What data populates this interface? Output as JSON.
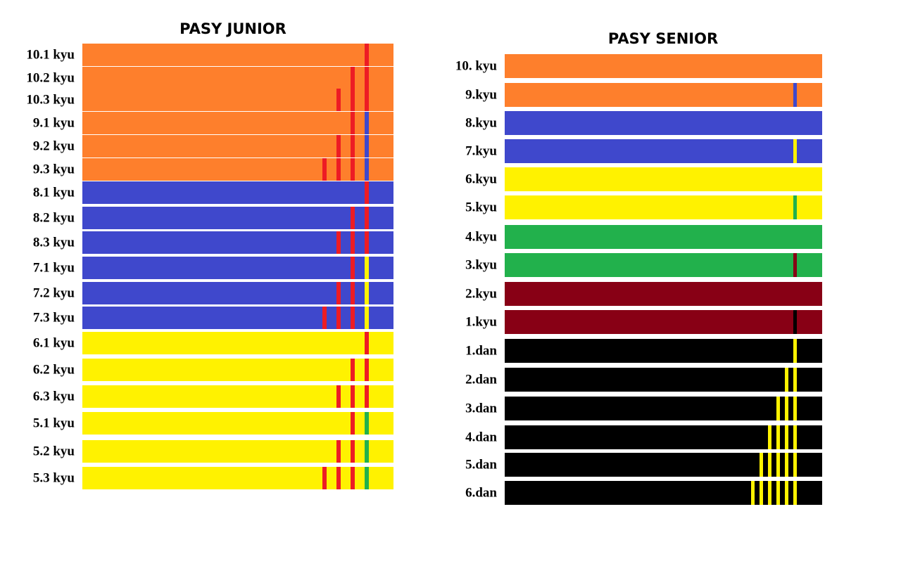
{
  "junior": {
    "title": "PASY JUNIOR",
    "rows": [
      {
        "label": "10.1 kyu",
        "belt": "#fe7f2c",
        "stripes": [
          "#ed1c24"
        ]
      },
      {
        "label": "10.2 kyu",
        "belt": "#fe7f2c",
        "stripes": [
          "#ed1c24",
          "#ed1c24"
        ]
      },
      {
        "label": "10.3 kyu",
        "belt": "#fe7f2c",
        "stripes": [
          "#ed1c24",
          "#ed1c24",
          "#ed1c24"
        ]
      },
      {
        "label": "9.1 kyu",
        "belt": "#fe7f2c",
        "stripes": [
          "#3f48cc",
          "#ed1c24"
        ]
      },
      {
        "label": "9.2 kyu",
        "belt": "#fe7f2c",
        "stripes": [
          "#3f48cc",
          "#ed1c24",
          "#ed1c24"
        ]
      },
      {
        "label": "9.3 kyu",
        "belt": "#fe7f2c",
        "stripes": [
          "#3f48cc",
          "#ed1c24",
          "#ed1c24",
          "#ed1c24"
        ]
      },
      {
        "label": "8.1 kyu",
        "belt": "#3f48cc",
        "stripes": [
          "#ed1c24"
        ]
      },
      {
        "label": "8.2 kyu",
        "belt": "#3f48cc",
        "stripes": [
          "#ed1c24",
          "#ed1c24"
        ]
      },
      {
        "label": "8.3 kyu",
        "belt": "#3f48cc",
        "stripes": [
          "#ed1c24",
          "#ed1c24",
          "#ed1c24"
        ]
      },
      {
        "label": "7.1 kyu",
        "belt": "#3f48cc",
        "stripes": [
          "#fff200",
          "#ed1c24"
        ]
      },
      {
        "label": "7.2 kyu",
        "belt": "#3f48cc",
        "stripes": [
          "#fff200",
          "#ed1c24",
          "#ed1c24"
        ]
      },
      {
        "label": "7.3 kyu",
        "belt": "#3f48cc",
        "stripes": [
          "#fff200",
          "#ed1c24",
          "#ed1c24",
          "#ed1c24"
        ]
      },
      {
        "label": "6.1 kyu",
        "belt": "#fff200",
        "stripes": [
          "#ed1c24"
        ]
      },
      {
        "label": "6.2 kyu",
        "belt": "#fff200",
        "stripes": [
          "#ed1c24",
          "#ed1c24"
        ]
      },
      {
        "label": "6.3 kyu",
        "belt": "#fff200",
        "stripes": [
          "#ed1c24",
          "#ed1c24",
          "#ed1c24"
        ]
      },
      {
        "label": "5.1 kyu",
        "belt": "#fff200",
        "stripes": [
          "#22b14c",
          "#ed1c24"
        ]
      },
      {
        "label": "5.2 kyu",
        "belt": "#fff200",
        "stripes": [
          "#22b14c",
          "#ed1c24",
          "#ed1c24"
        ]
      },
      {
        "label": "5.3 kyu",
        "belt": "#fff200",
        "stripes": [
          "#22b14c",
          "#ed1c24",
          "#ed1c24",
          "#ed1c24"
        ]
      }
    ]
  },
  "senior": {
    "title": "PASY SENIOR",
    "rows": [
      {
        "label": "10. kyu",
        "belt": "#fe7f2c",
        "stripes": []
      },
      {
        "label": "9.kyu",
        "belt": "#fe7f2c",
        "stripes": [
          "#3f48cc"
        ]
      },
      {
        "label": "8.kyu",
        "belt": "#3f48cc",
        "stripes": []
      },
      {
        "label": "7.kyu",
        "belt": "#3f48cc",
        "stripes": [
          "#fff200"
        ]
      },
      {
        "label": "6.kyu",
        "belt": "#fff200",
        "stripes": []
      },
      {
        "label": "5.kyu",
        "belt": "#fff200",
        "stripes": [
          "#22b14c"
        ]
      },
      {
        "label": "4.kyu",
        "belt": "#22b14c",
        "stripes": []
      },
      {
        "label": "3.kyu",
        "belt": "#22b14c",
        "stripes": [
          "#880015"
        ]
      },
      {
        "label": "2.kyu",
        "belt": "#880015",
        "stripes": []
      },
      {
        "label": "1.kyu",
        "belt": "#880015",
        "stripes": [
          "#000000"
        ]
      },
      {
        "label": "1.dan",
        "belt": "#000000",
        "stripes": [
          "#fff200"
        ]
      },
      {
        "label": "2.dan",
        "belt": "#000000",
        "stripes": [
          "#fff200",
          "#fff200"
        ]
      },
      {
        "label": "3.dan",
        "belt": "#000000",
        "stripes": [
          "#fff200",
          "#fff200",
          "#fff200"
        ]
      },
      {
        "label": "4.dan",
        "belt": "#000000",
        "stripes": [
          "#fff200",
          "#fff200",
          "#fff200",
          "#fff200"
        ]
      },
      {
        "label": "5.dan",
        "belt": "#000000",
        "stripes": [
          "#fff200",
          "#fff200",
          "#fff200",
          "#fff200",
          "#fff200"
        ]
      },
      {
        "label": "6.dan",
        "belt": "#000000",
        "stripes": [
          "#fff200",
          "#fff200",
          "#fff200",
          "#fff200",
          "#fff200",
          "#fff200"
        ]
      }
    ]
  }
}
